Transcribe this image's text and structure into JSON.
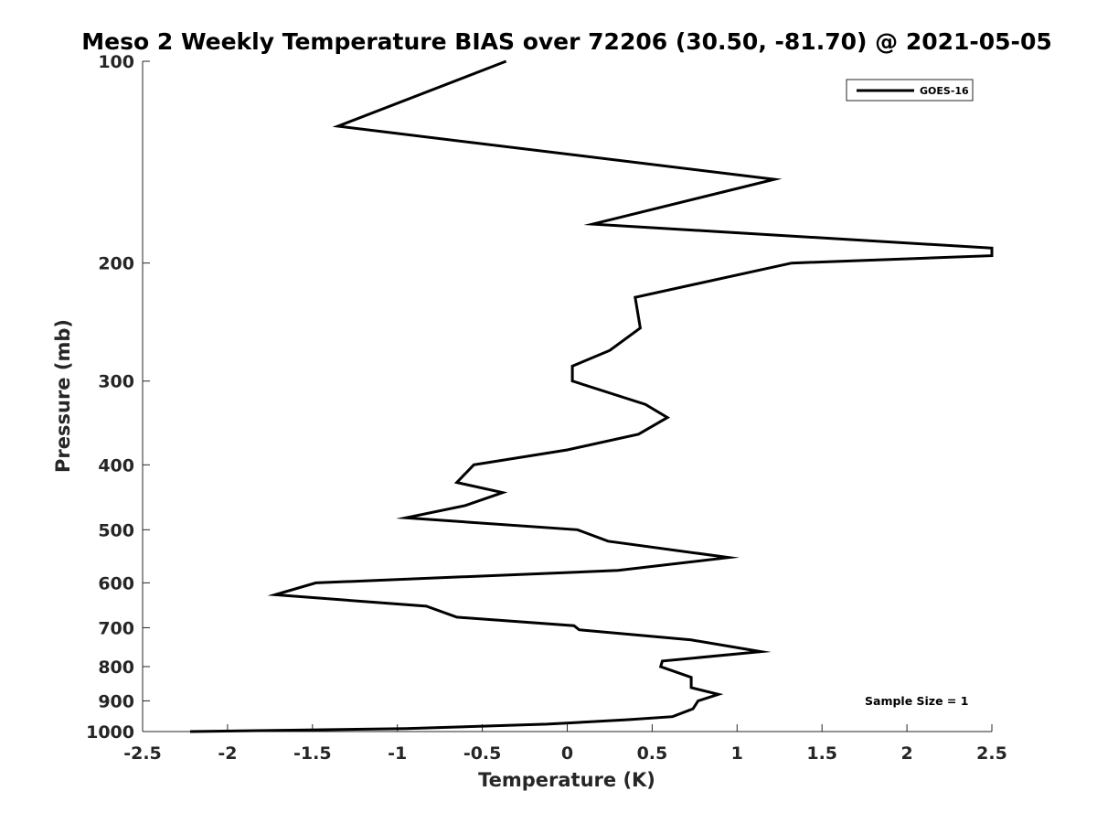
{
  "chart_data": {
    "type": "line",
    "title": "Meso 2 Weekly Temperature BIAS over 72206 (30.50, -81.70) @ 2021-05-05",
    "xlabel": "Temperature (K)",
    "ylabel": "Pressure (mb)",
    "xlim": [
      -2.5,
      2.5
    ],
    "ylim": [
      100,
      1000
    ],
    "y_scale": "log",
    "y_direction": "reversed",
    "x_ticks": [
      -2.5,
      -2,
      -1.5,
      -1,
      -0.5,
      0,
      0.5,
      1,
      1.5,
      2,
      2.5
    ],
    "x_tick_labels": [
      "-2.5",
      "-2",
      "-1.5",
      "-1",
      "-0.5",
      "0",
      "0.5",
      "1",
      "1.5",
      "2",
      "2.5"
    ],
    "y_ticks": [
      100,
      200,
      300,
      400,
      500,
      600,
      700,
      800,
      900,
      1000
    ],
    "y_tick_labels": [
      "100",
      "200",
      "300",
      "400",
      "500",
      "600",
      "700",
      "800",
      "900",
      "1000"
    ],
    "grid": false,
    "legend_position": "top-right",
    "color": "#000000",
    "annotation": "Sample Size = 1",
    "series": [
      {
        "name": "GOES-16",
        "x": [
          -0.36,
          -1.35,
          1.22,
          0.15,
          2.5,
          2.5,
          1.32,
          0.4,
          0.43,
          0.25,
          0.03,
          0.03,
          0.46,
          0.59,
          0.42,
          0.0,
          -0.55,
          -0.65,
          -0.38,
          -0.6,
          -0.95,
          0.06,
          0.24,
          0.95,
          0.3,
          -1.48,
          -1.72,
          -0.83,
          -0.65,
          0.04,
          0.07,
          0.73,
          1.14,
          0.56,
          0.55,
          0.73,
          0.73,
          0.89,
          0.77,
          0.74,
          0.62,
          0.36,
          -0.12,
          -0.95,
          -2.22
        ],
        "y": [
          100,
          125,
          150,
          175,
          190,
          195,
          200,
          225,
          250,
          270,
          285,
          300,
          325,
          340,
          360,
          380,
          400,
          425,
          440,
          460,
          480,
          500,
          520,
          550,
          575,
          600,
          625,
          650,
          675,
          695,
          705,
          730,
          760,
          785,
          800,
          830,
          860,
          880,
          900,
          925,
          950,
          960,
          975,
          990,
          1000
        ]
      }
    ]
  }
}
